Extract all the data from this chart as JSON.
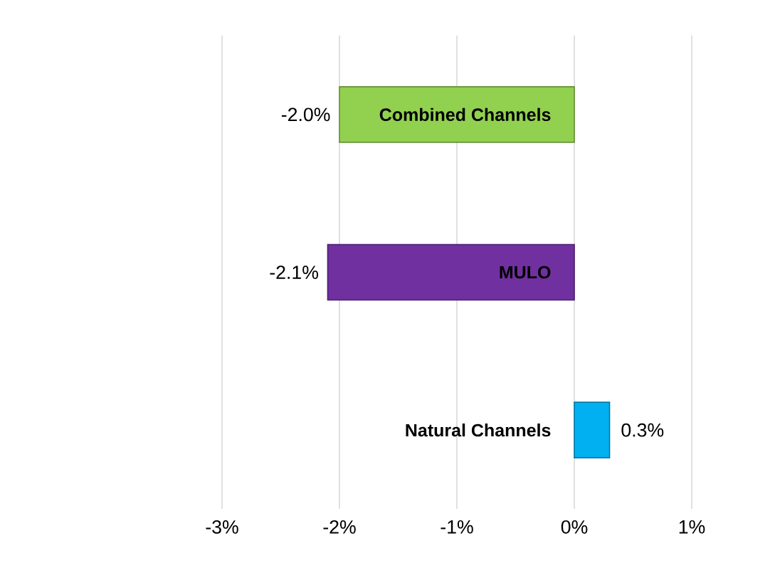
{
  "chart_data": {
    "type": "bar",
    "orientation": "horizontal",
    "categories": [
      "Combined Channels",
      "MULO",
      "Natural Channels"
    ],
    "values": [
      -2.0,
      -2.1,
      0.3
    ],
    "colors": [
      "#92d050",
      "#7030a0",
      "#00b0f0"
    ],
    "value_labels": [
      "-2.0%",
      "-2.1%",
      "0.3%"
    ],
    "xlim": [
      -3,
      1
    ],
    "xticks": [
      {
        "value": -3,
        "label": "-3%"
      },
      {
        "value": -2,
        "label": "-2%"
      },
      {
        "value": -1,
        "label": "-1%"
      },
      {
        "value": 0,
        "label": "0%"
      },
      {
        "value": 1,
        "label": "1%"
      }
    ],
    "grid": "x"
  }
}
